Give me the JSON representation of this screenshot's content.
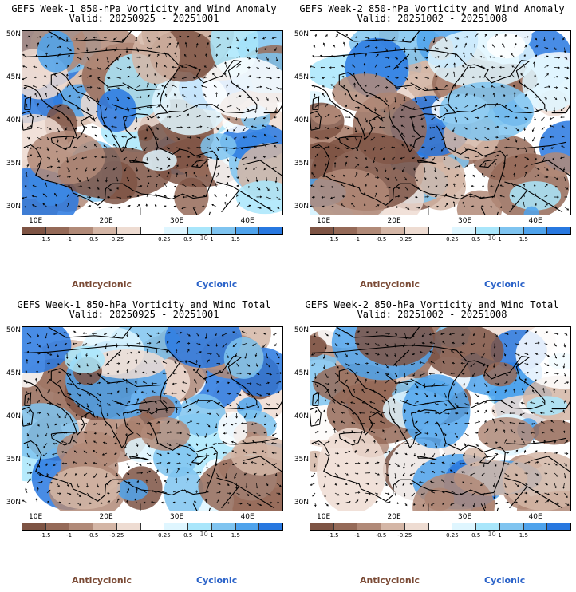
{
  "panels": [
    {
      "title_line1": "GEFS Week-1 850-hPa Vorticity and Wind Anomaly",
      "title_line2": "Valid: 20250925 - 20251001",
      "seed": 11
    },
    {
      "title_line1": "GEFS Week-2 850-hPa Vorticity and Wind Anomaly",
      "title_line2": "Valid: 20251002 - 20251008",
      "seed": 23
    },
    {
      "title_line1": "GEFS Week-1 850-hPa Vorticity and Wind Total",
      "title_line2": "Valid: 20250925 - 20251001",
      "seed": 37
    },
    {
      "title_line1": "GEFS Week-2 850-hPa Vorticity and Wind Total",
      "title_line2": "Valid: 20251002 - 20251008",
      "seed": 53
    }
  ],
  "axes": {
    "lat_labels": [
      "50N",
      "45N",
      "40N",
      "35N",
      "30N"
    ],
    "lon_labels": [
      "10E",
      "20E",
      "30E",
      "40E"
    ]
  },
  "colorbar": {
    "tick_labels": [
      "-1.5",
      "-1",
      "-0.5",
      "-0.25",
      "0.25",
      "0.5",
      "1",
      "1.5"
    ],
    "unit_label": "10",
    "colors": [
      "#7e5444",
      "#956a58",
      "#b18a78",
      "#d4b6a6",
      "#eedcd2",
      "#ffffff",
      "#dff6ff",
      "#a9e6fb",
      "#7fc4f0",
      "#4fa3ec",
      "#2878e0"
    ]
  },
  "legend": {
    "anticyclonic": "Anticyclonic",
    "cyclonic": "Cyclonic"
  }
}
